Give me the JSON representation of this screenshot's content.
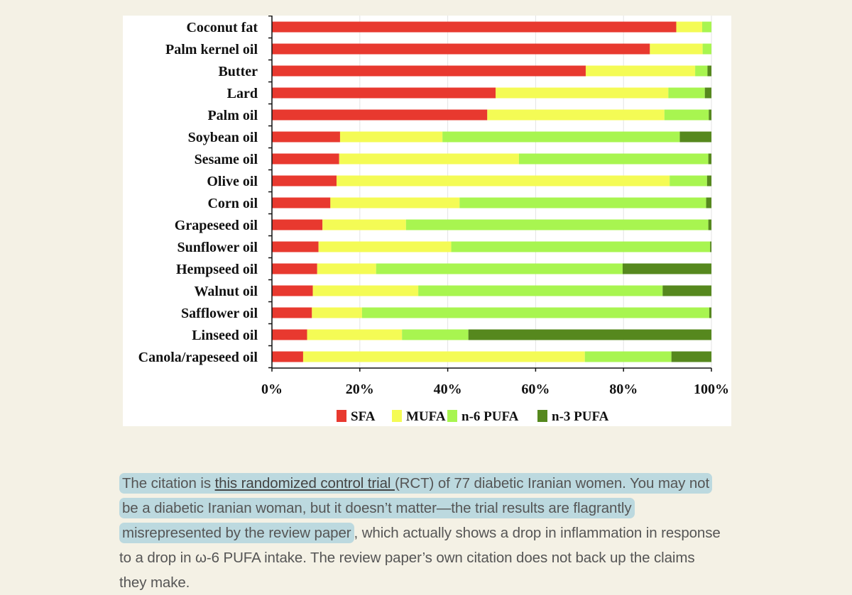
{
  "chart_data": {
    "type": "bar",
    "orientation": "horizontal",
    "stacked": true,
    "categories": [
      "Coconut fat",
      "Palm kernel oil",
      "Butter",
      "Lard",
      "Palm oil",
      "Soybean oil",
      "Sesame oil",
      "Olive oil",
      "Corn oil",
      "Grapeseed oil",
      "Sunflower oil",
      "Hempseed oil",
      "Walnut oil",
      "Safflower oil",
      "Linseed oil",
      "Canola/rapeseed oil"
    ],
    "series": [
      {
        "name": "SFA",
        "color": "#e8392f",
        "values": [
          92.0,
          86.0,
          71.4,
          50.9,
          49.0,
          15.5,
          15.3,
          14.7,
          13.3,
          11.5,
          10.6,
          10.3,
          9.3,
          9.1,
          8.0,
          7.1
        ]
      },
      {
        "name": "MUFA",
        "color": "#f4fb55",
        "values": [
          5.9,
          12.0,
          24.9,
          39.3,
          40.3,
          23.3,
          40.9,
          75.8,
          29.4,
          19.0,
          30.2,
          13.4,
          24.0,
          11.4,
          21.6,
          64.1
        ]
      },
      {
        "name": "n-6 PUFA",
        "color": "#a8f550",
        "values": [
          2.1,
          2.0,
          2.8,
          8.3,
          10.1,
          54.0,
          43.1,
          8.5,
          56.1,
          68.8,
          58.9,
          56.1,
          55.6,
          79.0,
          15.1,
          19.7
        ]
      },
      {
        "name": "n-3 PUFA",
        "color": "#56881e",
        "values": [
          0,
          0,
          0.9,
          1.5,
          0.6,
          7.2,
          0.7,
          1.0,
          1.2,
          0.7,
          0.3,
          20.2,
          11.1,
          0.5,
          55.3,
          9.1
        ]
      }
    ],
    "xticks": [
      "0%",
      "20%",
      "40%",
      "60%",
      "80%",
      "100%"
    ],
    "xlim": [
      0,
      100
    ],
    "grid": true,
    "legend_position": "bottom",
    "title": "",
    "xlabel": "",
    "ylabel": ""
  },
  "paragraph": {
    "part1": "The citation is ",
    "link": "this randomized control trial ",
    "part2": "(RCT) of 77 diabetic Iranian women. You may not be a diabetic Iranian woman, but it doesn’t matter—the trial results are flagrantly misrepresented by the review paper",
    "part3": ", which actually shows a drop in inflammation in response to a drop in ω-6 PUFA intake. The review paper’s own citation does not back up the claims they make.",
    "highlight_color": "#bcd9df"
  }
}
